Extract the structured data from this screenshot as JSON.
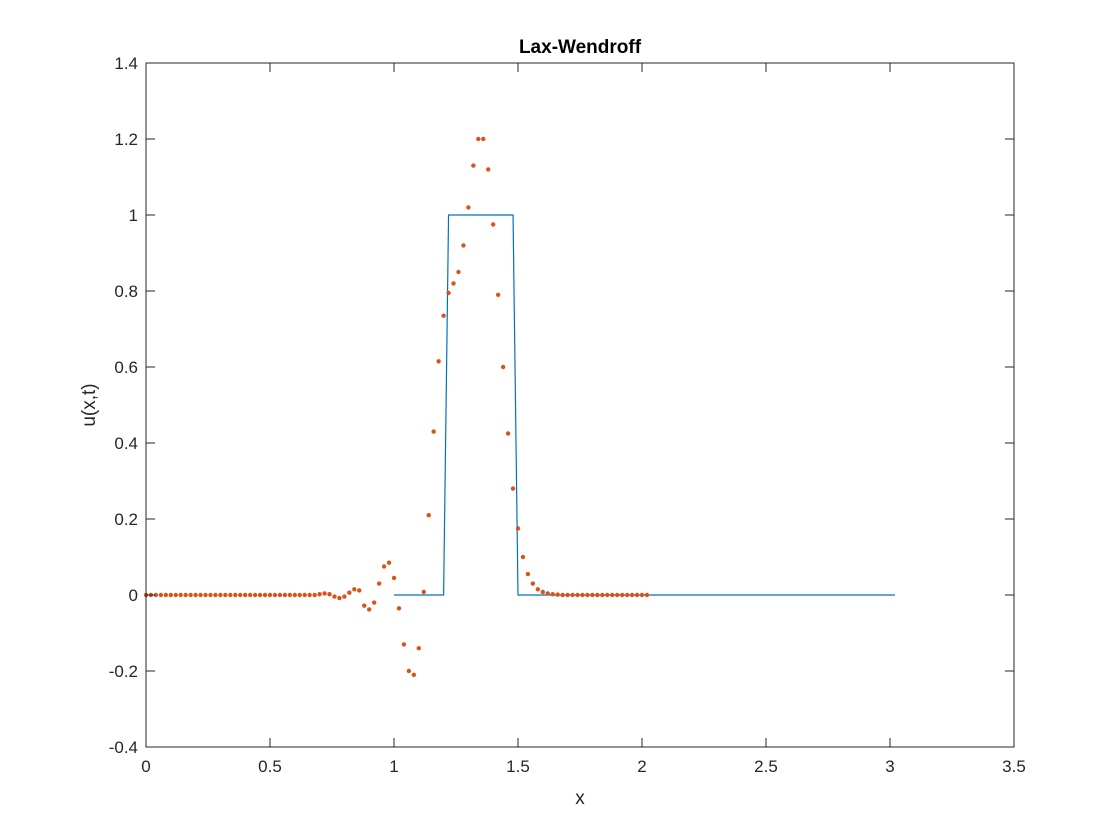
{
  "chart_data": {
    "type": "line",
    "title": "Lax-Wendroff",
    "xlabel": "x",
    "ylabel": "u(x,t)",
    "xlim": [
      0,
      3.5
    ],
    "ylim": [
      -0.4,
      1.4
    ],
    "xticks": [
      "0",
      "0.5",
      "1",
      "1.5",
      "2",
      "2.5",
      "3",
      "3.5"
    ],
    "yticks": [
      "-0.4",
      "-0.2",
      "0",
      "0.2",
      "0.4",
      "0.6",
      "0.8",
      "1",
      "1.2",
      "1.4"
    ],
    "grid": false,
    "box": true,
    "colors": {
      "exact": "#0072BD",
      "numeric": "#D95319",
      "axes": "#262626",
      "background": "#ffffff"
    },
    "series": [
      {
        "style": "line",
        "x": [
          1.0,
          1.2,
          1.22,
          1.48,
          1.5,
          3.02
        ],
        "y": [
          0,
          0,
          1,
          1,
          0,
          0
        ]
      },
      {
        "style": "dots",
        "x": [
          0.0,
          0.02,
          0.04,
          0.06,
          0.08,
          0.1,
          0.12,
          0.14,
          0.16,
          0.18,
          0.2,
          0.22,
          0.24,
          0.26,
          0.28,
          0.3,
          0.32,
          0.34,
          0.36,
          0.38,
          0.4,
          0.42,
          0.44,
          0.46,
          0.48,
          0.5,
          0.52,
          0.54,
          0.56,
          0.58,
          0.6,
          0.62,
          0.64,
          0.66,
          0.68,
          0.7,
          0.72,
          0.74,
          0.76,
          0.78,
          0.8,
          0.82,
          0.84,
          0.86,
          0.88,
          0.9,
          0.92,
          0.94,
          0.96,
          0.98,
          1.0,
          1.02,
          1.04,
          1.06,
          1.08,
          1.1,
          1.12,
          1.14,
          1.16,
          1.18,
          1.2,
          1.22,
          1.24,
          1.26,
          1.28,
          1.3,
          1.32,
          1.34,
          1.36,
          1.38,
          1.4,
          1.42,
          1.44,
          1.46,
          1.48,
          1.5,
          1.52,
          1.54,
          1.56,
          1.58,
          1.6,
          1.62,
          1.64,
          1.66,
          1.68,
          1.7,
          1.72,
          1.74,
          1.76,
          1.78,
          1.8,
          1.82,
          1.84,
          1.86,
          1.88,
          1.9,
          1.92,
          1.94,
          1.96,
          1.98,
          2.0,
          2.02
        ],
        "y": [
          0,
          0,
          0,
          0,
          0,
          0,
          0,
          0,
          0,
          0,
          0,
          0,
          0,
          0,
          0,
          0,
          0,
          0,
          0,
          0,
          0,
          0,
          0,
          0,
          0,
          0,
          0,
          0,
          0,
          0,
          0,
          0,
          0,
          0,
          0,
          0.002,
          0.004,
          0.002,
          -0.004,
          -0.008,
          -0.004,
          0.006,
          0.015,
          0.012,
          -0.028,
          -0.038,
          -0.02,
          0.03,
          0.075,
          0.085,
          0.045,
          -0.035,
          -0.13,
          -0.2,
          -0.21,
          -0.14,
          0.008,
          0.21,
          0.43,
          0.615,
          0.735,
          0.795,
          0.82,
          0.85,
          0.92,
          1.02,
          1.13,
          1.2,
          1.2,
          1.12,
          0.975,
          0.79,
          0.6,
          0.425,
          0.28,
          0.175,
          0.1,
          0.055,
          0.03,
          0.015,
          0.008,
          0.004,
          0.002,
          0.001,
          0,
          0,
          0,
          0,
          0,
          0,
          0,
          0,
          0,
          0,
          0,
          0,
          0,
          0,
          0,
          0,
          0,
          0
        ]
      }
    ]
  }
}
